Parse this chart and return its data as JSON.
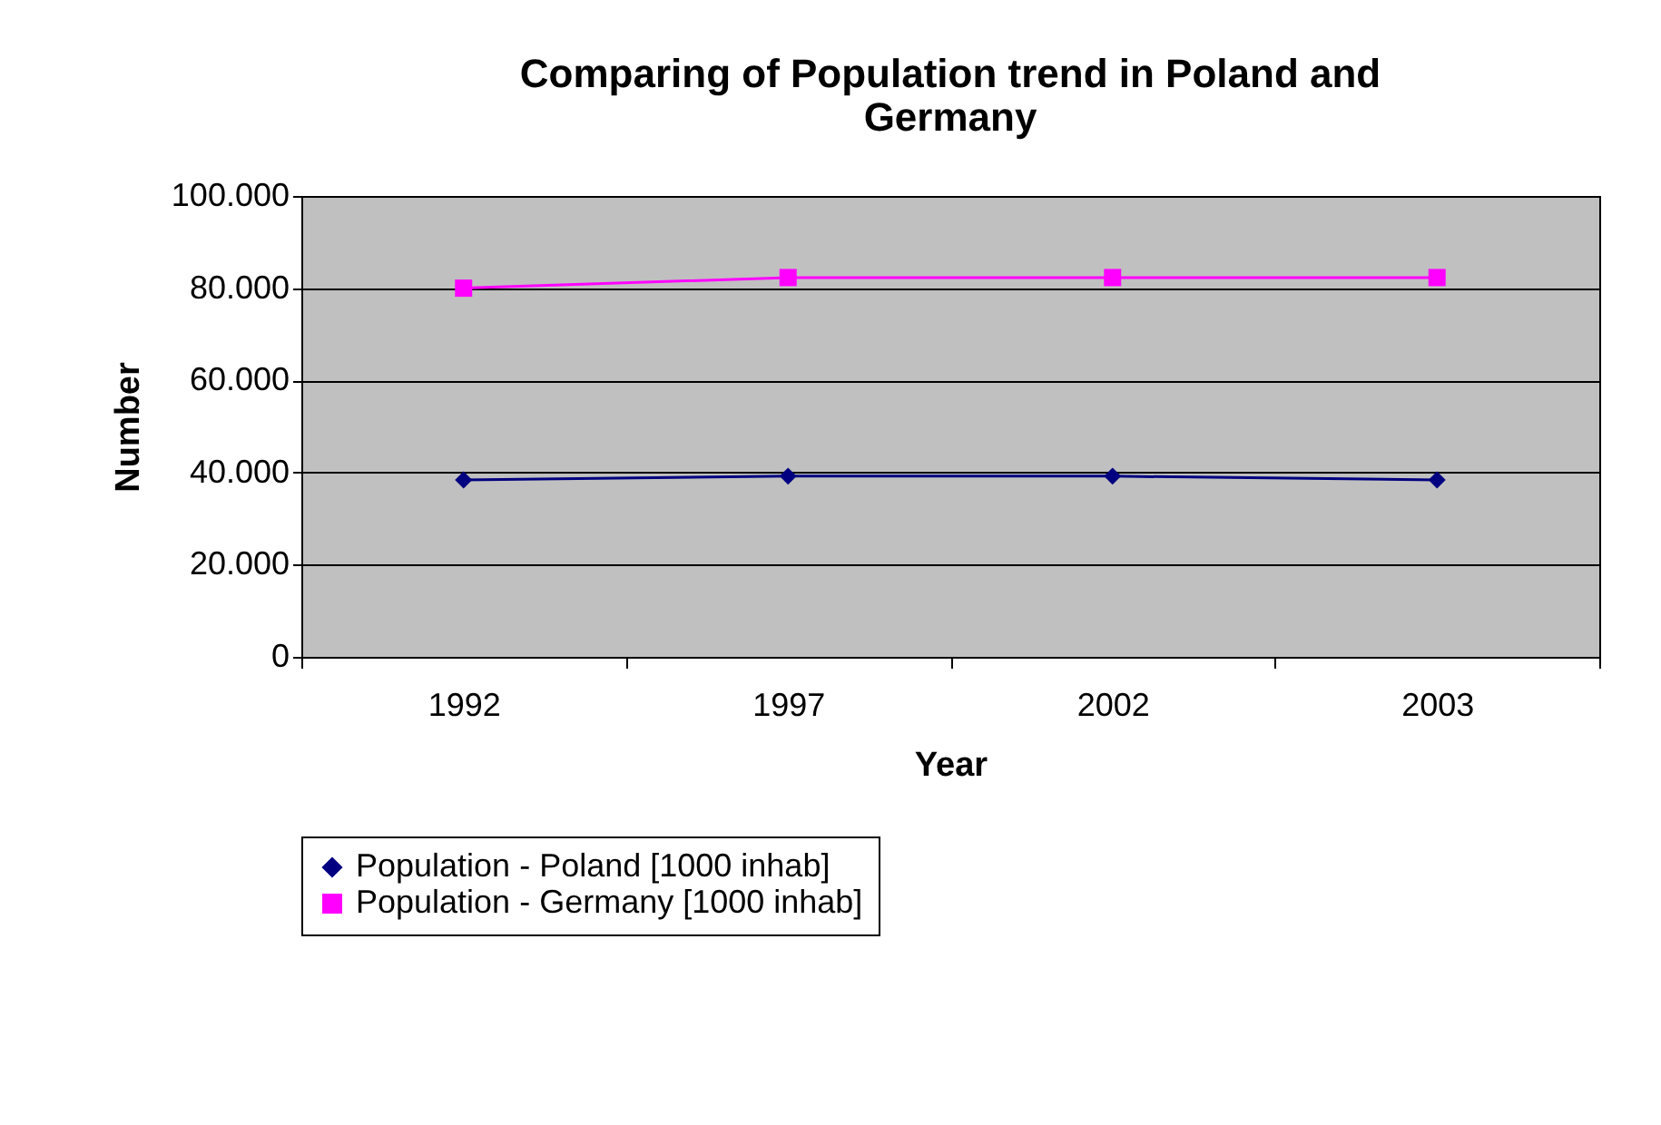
{
  "chart_data": {
    "type": "line",
    "title": "Comparing of Population trend in Poland and Germany",
    "xlabel": "Year",
    "ylabel": "Number",
    "categories": [
      "1992",
      "1997",
      "2002",
      "2003"
    ],
    "series": [
      {
        "name": "Population - Poland [1000 inhab]",
        "color": "#000080",
        "marker": "diamond",
        "values": [
          38400,
          39200,
          39200,
          38400
        ]
      },
      {
        "name": "Population - Germany [1000 inhab]",
        "color": "#ff00ff",
        "marker": "square",
        "values": [
          80000,
          82300,
          82300,
          82300
        ]
      }
    ],
    "ylim": [
      0,
      100000
    ],
    "yticks": [
      {
        "value": 0,
        "label": "0"
      },
      {
        "value": 20000,
        "label": "20.000"
      },
      {
        "value": 40000,
        "label": "40.000"
      },
      {
        "value": 60000,
        "label": "60.000"
      },
      {
        "value": 80000,
        "label": "80.000"
      },
      {
        "value": 100000,
        "label": "100.000"
      }
    ],
    "grid": "y",
    "legend": "bottom",
    "line_style": "solid"
  }
}
